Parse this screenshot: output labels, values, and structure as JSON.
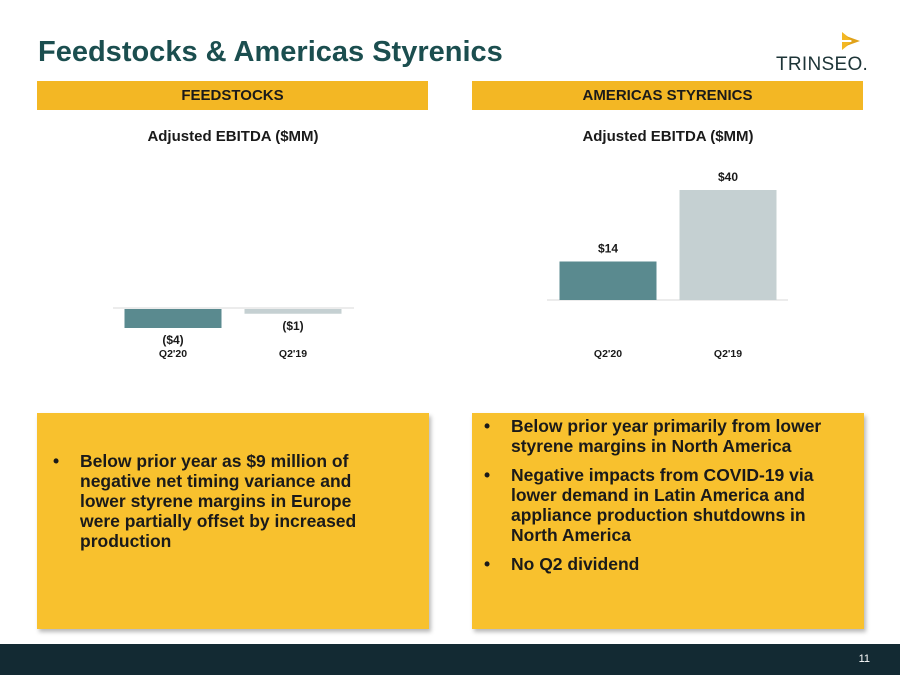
{
  "slide": {
    "title": "Feedstocks & Americas Styrenics",
    "logo_text": "TRINSEO.",
    "page_number": "11"
  },
  "sections": {
    "left_header": "FEEDSTOCKS",
    "right_header": "AMERICAS STYRENICS"
  },
  "chart_data": [
    {
      "type": "bar",
      "title": "Adjusted EBITDA ($MM)",
      "categories": [
        "Q2'20",
        "Q2'19"
      ],
      "values": [
        -4,
        -1
      ],
      "data_labels": [
        "($4)",
        "($1)"
      ],
      "colors": [
        "#5a8a8f",
        "#c5d0d2"
      ],
      "grid": false,
      "legend": "none"
    },
    {
      "type": "bar",
      "title": "Adjusted EBITDA ($MM)",
      "categories": [
        "Q2'20",
        "Q2'19"
      ],
      "values": [
        14,
        40
      ],
      "data_labels": [
        "$14",
        "$40"
      ],
      "colors": [
        "#5a8a8f",
        "#c5d0d2"
      ],
      "grid": false,
      "legend": "none"
    }
  ],
  "notes": {
    "left": [
      "Below prior year as $9 million of negative net timing variance and lower styrene margins in Europe were partially offset by increased production"
    ],
    "right": [
      "Below prior year primarily from lower  styrene margins in North America",
      "Negative impacts from COVID-19 via lower demand in Latin America and appliance production shutdowns in North America",
      "No Q2 dividend"
    ]
  },
  "colors": {
    "title": "#1b4e4f",
    "accent": "#f3b724",
    "footer": "#132a33",
    "bar_current": "#5a8a8f",
    "bar_prior": "#c5d0d2"
  },
  "icons": {
    "logo": "trinseo-chevron-icon"
  }
}
